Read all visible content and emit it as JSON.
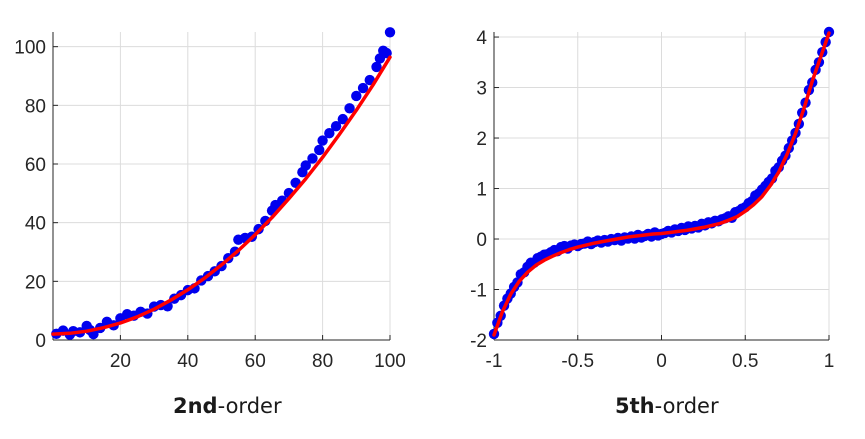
{
  "colors": {
    "points": "#0000ee",
    "fit": "#ff0000",
    "grid": "#dcdcdc",
    "axis": "#262626"
  },
  "chart_data": [
    {
      "type": "scatter",
      "title": "",
      "xlabel": "",
      "ylabel": "",
      "xlim": [
        0,
        100
      ],
      "ylim": [
        0,
        105
      ],
      "xticks": [
        20,
        40,
        60,
        80,
        100
      ],
      "yticks": [
        0,
        20,
        40,
        60,
        80,
        100
      ],
      "xtick_labels": [
        "20",
        "40",
        "60",
        "80",
        "100"
      ],
      "ytick_labels": [
        "0",
        "20",
        "40",
        "60",
        "80",
        "100"
      ],
      "grid": true,
      "caption_bold": "2nd",
      "caption_rest": "-order",
      "series": [
        {
          "type": "scatter",
          "points": [
            [
              1,
              2.1
            ],
            [
              3,
              3.2
            ],
            [
              5,
              1.8
            ],
            [
              6,
              3.0
            ],
            [
              8,
              2.6
            ],
            [
              10,
              4.8
            ],
            [
              11,
              3.4
            ],
            [
              12,
              2.0
            ],
            [
              14,
              4.1
            ],
            [
              16,
              6.2
            ],
            [
              18,
              5.0
            ],
            [
              20,
              7.4
            ],
            [
              22,
              8.8
            ],
            [
              24,
              8.3
            ],
            [
              26,
              9.6
            ],
            [
              28,
              9.0
            ],
            [
              30,
              11.4
            ],
            [
              32,
              11.9
            ],
            [
              34,
              11.5
            ],
            [
              36,
              14.1
            ],
            [
              38,
              15.3
            ],
            [
              40,
              17.0
            ],
            [
              42,
              17.6
            ],
            [
              44,
              20.3
            ],
            [
              46,
              21.8
            ],
            [
              48,
              23.4
            ],
            [
              50,
              25.2
            ],
            [
              52,
              27.9
            ],
            [
              54,
              30.1
            ],
            [
              55,
              34.2
            ],
            [
              57,
              34.8
            ],
            [
              59,
              35.2
            ],
            [
              61,
              37.8
            ],
            [
              63,
              40.6
            ],
            [
              65,
              44.1
            ],
            [
              66,
              46.0
            ],
            [
              68,
              47.5
            ],
            [
              70,
              50.1
            ],
            [
              72,
              53.6
            ],
            [
              74,
              57.2
            ],
            [
              75,
              59.5
            ],
            [
              77,
              61.9
            ],
            [
              79,
              64.8
            ],
            [
              80,
              68.0
            ],
            [
              82,
              70.5
            ],
            [
              84,
              72.9
            ],
            [
              86,
              75.3
            ],
            [
              88,
              79.0
            ],
            [
              90,
              83.2
            ],
            [
              92,
              85.9
            ],
            [
              94,
              88.6
            ],
            [
              96,
              93.1
            ],
            [
              97,
              96.0
            ],
            [
              98,
              98.6
            ],
            [
              99,
              97.8
            ],
            [
              100,
              104.9
            ]
          ]
        },
        {
          "type": "line",
          "name": "",
          "x": [
            0,
            5,
            10,
            15,
            20,
            25,
            30,
            35,
            40,
            45,
            50,
            55,
            60,
            65,
            70,
            75,
            80,
            85,
            90,
            95,
            100
          ],
          "y": [
            2.0,
            2.3,
            3.0,
            4.2,
            5.8,
            7.9,
            10.5,
            13.6,
            17.1,
            21.1,
            25.6,
            30.5,
            35.9,
            41.8,
            48.2,
            55.0,
            62.3,
            70.1,
            78.3,
            87.0,
            96.4
          ]
        }
      ]
    },
    {
      "type": "scatter",
      "title": "",
      "xlabel": "",
      "ylabel": "",
      "xlim": [
        -1,
        1
      ],
      "ylim": [
        -2,
        4.1
      ],
      "xticks": [
        -1,
        -0.5,
        0,
        0.5,
        1
      ],
      "yticks": [
        -2,
        -1,
        0,
        1,
        2,
        3,
        4
      ],
      "xtick_labels": [
        "-1",
        "-0.5",
        "0",
        "0.5",
        "1"
      ],
      "ytick_labels": [
        "-2",
        "-1",
        "0",
        "1",
        "2",
        "3",
        "4"
      ],
      "grid": true,
      "caption_bold": "5th",
      "caption_rest": "-order",
      "series": [
        {
          "type": "scatter",
          "points": [
            [
              -1,
              -1.88
            ],
            [
              -0.98,
              -1.66
            ],
            [
              -0.96,
              -1.52
            ],
            [
              -0.94,
              -1.32
            ],
            [
              -0.92,
              -1.18
            ],
            [
              -0.9,
              -1.08
            ],
            [
              -0.88,
              -0.95
            ],
            [
              -0.86,
              -0.86
            ],
            [
              -0.84,
              -0.7
            ],
            [
              -0.82,
              -0.66
            ],
            [
              -0.8,
              -0.55
            ],
            [
              -0.78,
              -0.47
            ],
            [
              -0.76,
              -0.47
            ],
            [
              -0.74,
              -0.38
            ],
            [
              -0.72,
              -0.35
            ],
            [
              -0.7,
              -0.31
            ],
            [
              -0.68,
              -0.3
            ],
            [
              -0.66,
              -0.26
            ],
            [
              -0.64,
              -0.22
            ],
            [
              -0.62,
              -0.24
            ],
            [
              -0.6,
              -0.16
            ],
            [
              -0.58,
              -0.14
            ],
            [
              -0.56,
              -0.19
            ],
            [
              -0.54,
              -0.13
            ],
            [
              -0.52,
              -0.11
            ],
            [
              -0.5,
              -0.14
            ],
            [
              -0.48,
              -0.1
            ],
            [
              -0.46,
              -0.09
            ],
            [
              -0.44,
              -0.05
            ],
            [
              -0.42,
              -0.1
            ],
            [
              -0.4,
              -0.06
            ],
            [
              -0.38,
              -0.03
            ],
            [
              -0.36,
              -0.07
            ],
            [
              -0.34,
              -0.02
            ],
            [
              -0.32,
              -0.05
            ],
            [
              -0.3,
              0.0
            ],
            [
              -0.28,
              -0.02
            ],
            [
              -0.26,
              0.02
            ],
            [
              -0.24,
              -0.03
            ],
            [
              -0.22,
              0.03
            ],
            [
              -0.2,
              0.01
            ],
            [
              -0.18,
              0.05
            ],
            [
              -0.16,
              0.01
            ],
            [
              -0.14,
              0.08
            ],
            [
              -0.12,
              0.03
            ],
            [
              -0.1,
              0.06
            ],
            [
              -0.08,
              0.1
            ],
            [
              -0.06,
              0.05
            ],
            [
              -0.04,
              0.13
            ],
            [
              -0.02,
              0.07
            ],
            [
              0.0,
              0.1
            ],
            [
              0.02,
              0.12
            ],
            [
              0.04,
              0.16
            ],
            [
              0.06,
              0.13
            ],
            [
              0.08,
              0.19
            ],
            [
              0.1,
              0.16
            ],
            [
              0.12,
              0.22
            ],
            [
              0.14,
              0.18
            ],
            [
              0.16,
              0.25
            ],
            [
              0.18,
              0.21
            ],
            [
              0.2,
              0.26
            ],
            [
              0.22,
              0.23
            ],
            [
              0.24,
              0.3
            ],
            [
              0.26,
              0.27
            ],
            [
              0.28,
              0.33
            ],
            [
              0.3,
              0.31
            ],
            [
              0.32,
              0.36
            ],
            [
              0.34,
              0.35
            ],
            [
              0.36,
              0.39
            ],
            [
              0.38,
              0.41
            ],
            [
              0.4,
              0.45
            ],
            [
              0.42,
              0.42
            ],
            [
              0.44,
              0.53
            ],
            [
              0.46,
              0.55
            ],
            [
              0.48,
              0.6
            ],
            [
              0.5,
              0.63
            ],
            [
              0.52,
              0.71
            ],
            [
              0.54,
              0.75
            ],
            [
              0.56,
              0.86
            ],
            [
              0.58,
              0.9
            ],
            [
              0.6,
              0.98
            ],
            [
              0.62,
              1.05
            ],
            [
              0.64,
              1.13
            ],
            [
              0.66,
              1.2
            ],
            [
              0.68,
              1.35
            ],
            [
              0.7,
              1.42
            ],
            [
              0.72,
              1.55
            ],
            [
              0.74,
              1.65
            ],
            [
              0.76,
              1.8
            ],
            [
              0.78,
              1.95
            ],
            [
              0.8,
              2.1
            ],
            [
              0.82,
              2.28
            ],
            [
              0.84,
              2.5
            ],
            [
              0.86,
              2.7
            ],
            [
              0.88,
              2.95
            ],
            [
              0.9,
              3.1
            ],
            [
              0.92,
              3.35
            ],
            [
              0.94,
              3.5
            ],
            [
              0.96,
              3.7
            ],
            [
              0.98,
              3.9
            ],
            [
              1.0,
              4.1
            ]
          ]
        },
        {
          "type": "line",
          "name": "",
          "x": [
            -1,
            -0.95,
            -0.9,
            -0.85,
            -0.8,
            -0.75,
            -0.7,
            -0.65,
            -0.6,
            -0.55,
            -0.5,
            -0.45,
            -0.4,
            -0.35,
            -0.3,
            -0.25,
            -0.2,
            -0.15,
            -0.1,
            -0.05,
            0,
            0.05,
            0.1,
            0.15,
            0.2,
            0.25,
            0.3,
            0.35,
            0.4,
            0.45,
            0.5,
            0.55,
            0.6,
            0.65,
            0.7,
            0.75,
            0.8,
            0.85,
            0.9,
            0.95,
            1
          ],
          "y": [
            -1.9,
            -1.44,
            -1.09,
            -0.84,
            -0.66,
            -0.52,
            -0.42,
            -0.34,
            -0.27,
            -0.21,
            -0.16,
            -0.12,
            -0.08,
            -0.05,
            -0.02,
            0.01,
            0.04,
            0.06,
            0.08,
            0.1,
            0.11,
            0.13,
            0.15,
            0.17,
            0.2,
            0.23,
            0.27,
            0.31,
            0.37,
            0.44,
            0.55,
            0.68,
            0.84,
            1.06,
            1.33,
            1.68,
            2.09,
            2.58,
            3.13,
            3.6,
            4.08
          ]
        }
      ]
    }
  ]
}
